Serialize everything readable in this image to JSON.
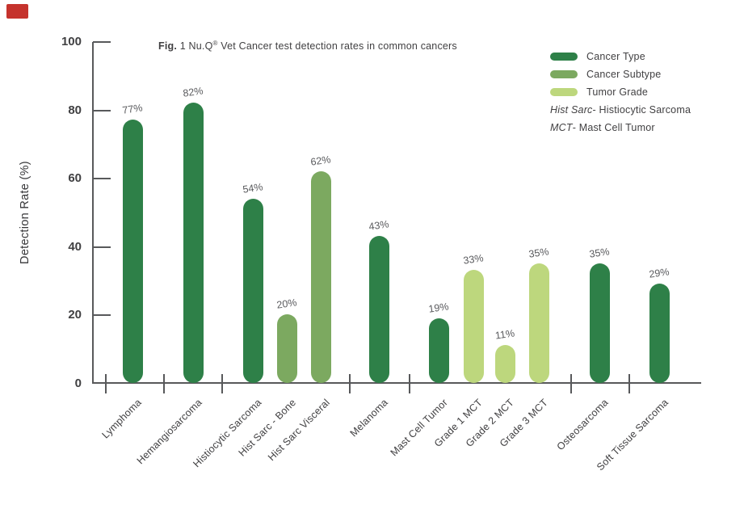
{
  "title_parts": [
    {
      "text": "Fig.",
      "bold": true
    },
    {
      "text": " 1 Nu.Q"
    },
    {
      "text": "®",
      "sup": true
    },
    {
      "text": " Vet Cancer test detection rates in common cancers"
    }
  ],
  "chart_data": {
    "type": "bar",
    "title": "Fig. 1 Nu.Q® Vet Cancer test detection rates in common cancers",
    "xlabel": "",
    "ylabel": "Detection Rate (%)",
    "ylim": [
      0,
      100
    ],
    "yticks": [
      0,
      20,
      40,
      60,
      80,
      100
    ],
    "grid": false,
    "legend_position": "top-right",
    "bars": [
      {
        "label": "Lymphoma",
        "value": 77,
        "value_label": "77%",
        "group": "Cancer Type"
      },
      {
        "label": "Hemangiosarcoma",
        "value": 82,
        "value_label": "82%",
        "group": "Cancer Type"
      },
      {
        "label": "Histiocytic Sarcoma",
        "value": 54,
        "value_label": "54%",
        "group": "Cancer Type"
      },
      {
        "label": "Hist Sarc - Bone",
        "value": 20,
        "value_label": "20%",
        "group": "Cancer Subtype"
      },
      {
        "label": "Hist Sarc Visceral",
        "value": 62,
        "value_label": "62%",
        "group": "Cancer Subtype"
      },
      {
        "label": "Melanoma",
        "value": 43,
        "value_label": "43%",
        "group": "Cancer Type"
      },
      {
        "label": "Mast Cell Tumor",
        "value": 19,
        "value_label": "19%",
        "group": "Cancer Type"
      },
      {
        "label": "Grade 1 MCT",
        "value": 33,
        "value_label": "33%",
        "group": "Tumor Grade"
      },
      {
        "label": "Grade 2 MCT",
        "value": 11,
        "value_label": "11%",
        "group": "Tumor Grade"
      },
      {
        "label": "Grade 3 MCT",
        "value": 35,
        "value_label": "35%",
        "group": "Tumor Grade"
      },
      {
        "label": "Osteosarcoma",
        "value": 35,
        "value_label": "35%",
        "group": "Cancer Type"
      },
      {
        "label": "Soft Tissue Sarcoma",
        "value": 29,
        "value_label": "29%",
        "group": "Cancer Type"
      }
    ],
    "legend": [
      {
        "label": "Cancer Type",
        "color": "#2e8048"
      },
      {
        "label": "Cancer Subtype",
        "color": "#7ca960"
      },
      {
        "label": "Tumor Grade",
        "color": "#bdd77d"
      }
    ],
    "notes": [
      {
        "italic": "Hist Sarc",
        "rest": " - Histiocytic Sarcoma"
      },
      {
        "italic": "MCT",
        "rest": " - Mast Cell Tumor"
      }
    ]
  },
  "colors": {
    "axis": "#58595b",
    "text": "#414042",
    "value_label": "#5a5b5e",
    "red_marker": "#c5332d"
  }
}
